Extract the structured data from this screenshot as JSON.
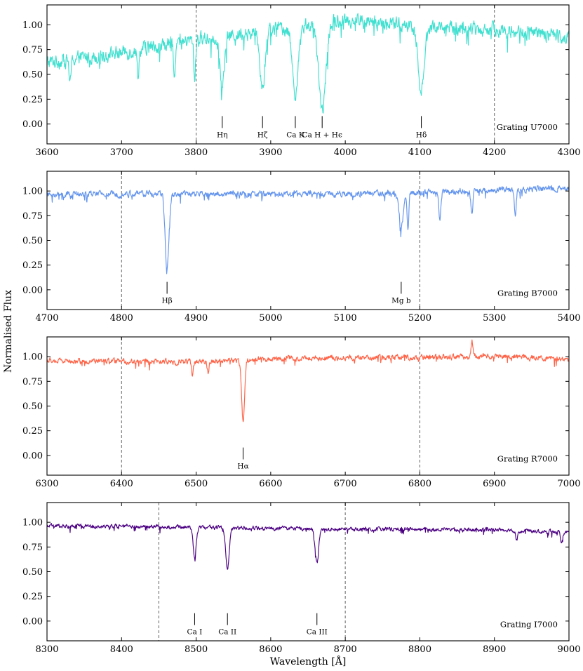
{
  "figure": {
    "ylabel": "Normalised Flux",
    "xlabel": "Wavelength [Å]"
  },
  "chart_data": [
    {
      "type": "line",
      "grating": "Grating U7000",
      "color": "#40e0d0",
      "xlim": [
        3600,
        4300
      ],
      "ylim": [
        -0.2,
        1.2
      ],
      "xticks": [
        3600,
        3700,
        3800,
        3900,
        4000,
        4100,
        4200,
        4300
      ],
      "yticks": [
        0.0,
        0.25,
        0.5,
        0.75,
        1.0
      ],
      "ytick_labels": [
        "0.00",
        "0.25",
        "0.50",
        "0.75",
        "1.00"
      ],
      "vlines": [
        3800,
        4200
      ],
      "lines": [
        {
          "wl": 3835,
          "label": "Hη",
          "depth": 0.58,
          "width": 3
        },
        {
          "wl": 3889,
          "label": "Hζ",
          "depth": 0.58,
          "width": 3.5
        },
        {
          "wl": 3933,
          "label": "Ca K",
          "depth": 0.68,
          "width": 4
        },
        {
          "wl": 3969,
          "label": "Ca H + Hϵ",
          "depth": 0.85,
          "width": 5
        },
        {
          "wl": 4102,
          "label": "Hδ",
          "depth": 0.65,
          "width": 4
        }
      ],
      "continuum": [
        [
          3600,
          0.62
        ],
        [
          3700,
          0.72
        ],
        [
          3800,
          0.85
        ],
        [
          3900,
          0.95
        ],
        [
          4000,
          1.05
        ],
        [
          4100,
          0.98
        ],
        [
          4200,
          0.95
        ],
        [
          4300,
          0.88
        ]
      ],
      "noise": 0.08,
      "extra_lines": [
        {
          "wl": 3631,
          "depth": 0.4
        },
        {
          "wl": 3722,
          "depth": 0.35
        },
        {
          "wl": 3771,
          "depth": 0.35
        },
        {
          "wl": 3798,
          "depth": 0.45
        }
      ]
    },
    {
      "type": "line",
      "grating": "Grating B7000",
      "color": "#6495ed",
      "xlim": [
        4700,
        5400
      ],
      "ylim": [
        -0.2,
        1.2
      ],
      "xticks": [
        4700,
        4800,
        4900,
        5000,
        5100,
        5200,
        5300,
        5400
      ],
      "yticks": [
        0.0,
        0.25,
        0.5,
        0.75,
        1.0
      ],
      "ytick_labels": [
        "0.00",
        "0.25",
        "0.50",
        "0.75",
        "1.00"
      ],
      "vlines": [
        4800,
        5200
      ],
      "lines": [
        {
          "wl": 4861,
          "label": "Hβ",
          "depth": 0.78,
          "width": 2.5
        },
        {
          "wl": 5175,
          "label": "Mg b",
          "depth": 0.35,
          "width": 3
        }
      ],
      "continuum": [
        [
          4700,
          0.96
        ],
        [
          4800,
          0.97
        ],
        [
          4900,
          0.97
        ],
        [
          5000,
          0.97
        ],
        [
          5100,
          0.97
        ],
        [
          5200,
          0.98
        ],
        [
          5300,
          1.01
        ],
        [
          5400,
          1.03
        ]
      ],
      "noise": 0.035,
      "extra_lines": [
        {
          "wl": 5184,
          "depth": 0.38
        },
        {
          "wl": 5227,
          "depth": 0.3
        },
        {
          "wl": 5270,
          "depth": 0.25
        },
        {
          "wl": 5328,
          "depth": 0.28
        }
      ]
    },
    {
      "type": "line",
      "grating": "Grating R7000",
      "color": "#ff6347",
      "xlim": [
        6300,
        7000
      ],
      "ylim": [
        -0.2,
        1.2
      ],
      "xticks": [
        6300,
        6400,
        6500,
        6600,
        6700,
        6800,
        6900,
        7000
      ],
      "yticks": [
        0.0,
        0.25,
        0.5,
        0.75,
        1.0
      ],
      "ytick_labels": [
        "0.00",
        "0.25",
        "0.50",
        "0.75",
        "1.00"
      ],
      "vlines": [
        6400,
        6800
      ],
      "lines": [
        {
          "wl": 6563,
          "label": "Hα",
          "depth": 0.65,
          "width": 2
        }
      ],
      "continuum": [
        [
          6300,
          0.96
        ],
        [
          6400,
          0.95
        ],
        [
          6500,
          0.95
        ],
        [
          6600,
          0.98
        ],
        [
          6700,
          0.99
        ],
        [
          6800,
          0.99
        ],
        [
          6900,
          1.01
        ],
        [
          7000,
          0.97
        ]
      ],
      "noise": 0.03,
      "extra_lines": [
        {
          "wl": 6495,
          "depth": 0.15
        },
        {
          "wl": 6516,
          "depth": 0.12
        },
        {
          "wl": 6870,
          "depth": -0.15
        }
      ]
    },
    {
      "type": "line",
      "grating": "Grating I7000",
      "color": "#4b0082",
      "xlim": [
        8300,
        9000
      ],
      "ylim": [
        -0.2,
        1.2
      ],
      "xticks": [
        8300,
        8400,
        8500,
        8600,
        8700,
        8800,
        8900,
        9000
      ],
      "yticks": [
        0.0,
        0.25,
        0.5,
        0.75,
        1.0
      ],
      "ytick_labels": [
        "0.00",
        "0.25",
        "0.50",
        "0.75",
        "1.00"
      ],
      "vlines": [
        8450,
        8700
      ],
      "lines": [
        {
          "wl": 8498,
          "label": "Ca I",
          "depth": 0.32,
          "width": 2
        },
        {
          "wl": 8542,
          "label": "Ca II",
          "depth": 0.44,
          "width": 2.3
        },
        {
          "wl": 8662,
          "label": "Ca III",
          "depth": 0.38,
          "width": 2.3
        }
      ],
      "continuum": [
        [
          8300,
          0.96
        ],
        [
          8400,
          0.96
        ],
        [
          8500,
          0.95
        ],
        [
          8600,
          0.94
        ],
        [
          8700,
          0.93
        ],
        [
          8800,
          0.93
        ],
        [
          8900,
          0.92
        ],
        [
          9000,
          0.9
        ]
      ],
      "noise": 0.022,
      "extra_lines": [
        {
          "wl": 8930,
          "depth": 0.1
        },
        {
          "wl": 8990,
          "depth": 0.1
        }
      ]
    }
  ]
}
